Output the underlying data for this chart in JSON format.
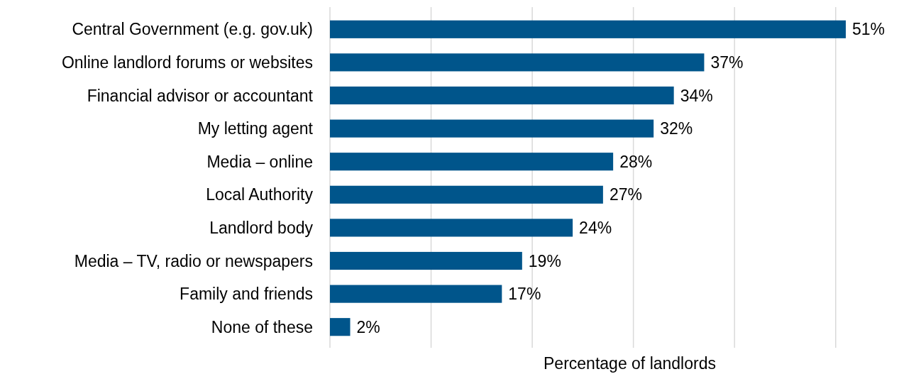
{
  "chart_data": {
    "type": "bar",
    "orientation": "horizontal",
    "xlabel": "Percentage of landlords",
    "categories": [
      "Central Government (e.g. gov.uk)",
      "Online landlord forums or websites",
      "Financial advisor or accountant",
      "My letting agent",
      "Media – online",
      "Local Authority",
      "Landlord body",
      "Media – TV, radio or newspapers",
      "Family and friends",
      "None of these"
    ],
    "values": [
      51,
      37,
      34,
      32,
      28,
      27,
      24,
      19,
      17,
      2
    ],
    "value_labels": [
      "51%",
      "37%",
      "34%",
      "32%",
      "28%",
      "27%",
      "24%",
      "19%",
      "17%",
      "2%"
    ],
    "color": "#00558b",
    "xticks": [
      {
        "value": 0,
        "label": null
      },
      {
        "value": 10,
        "label": null
      },
      {
        "value": 20,
        "label": null
      },
      {
        "value": 30,
        "label": null
      },
      {
        "value": 40,
        "label": null
      },
      {
        "value": 50,
        "label": null
      }
    ],
    "grid": "x",
    "tick_labels": "y"
  }
}
